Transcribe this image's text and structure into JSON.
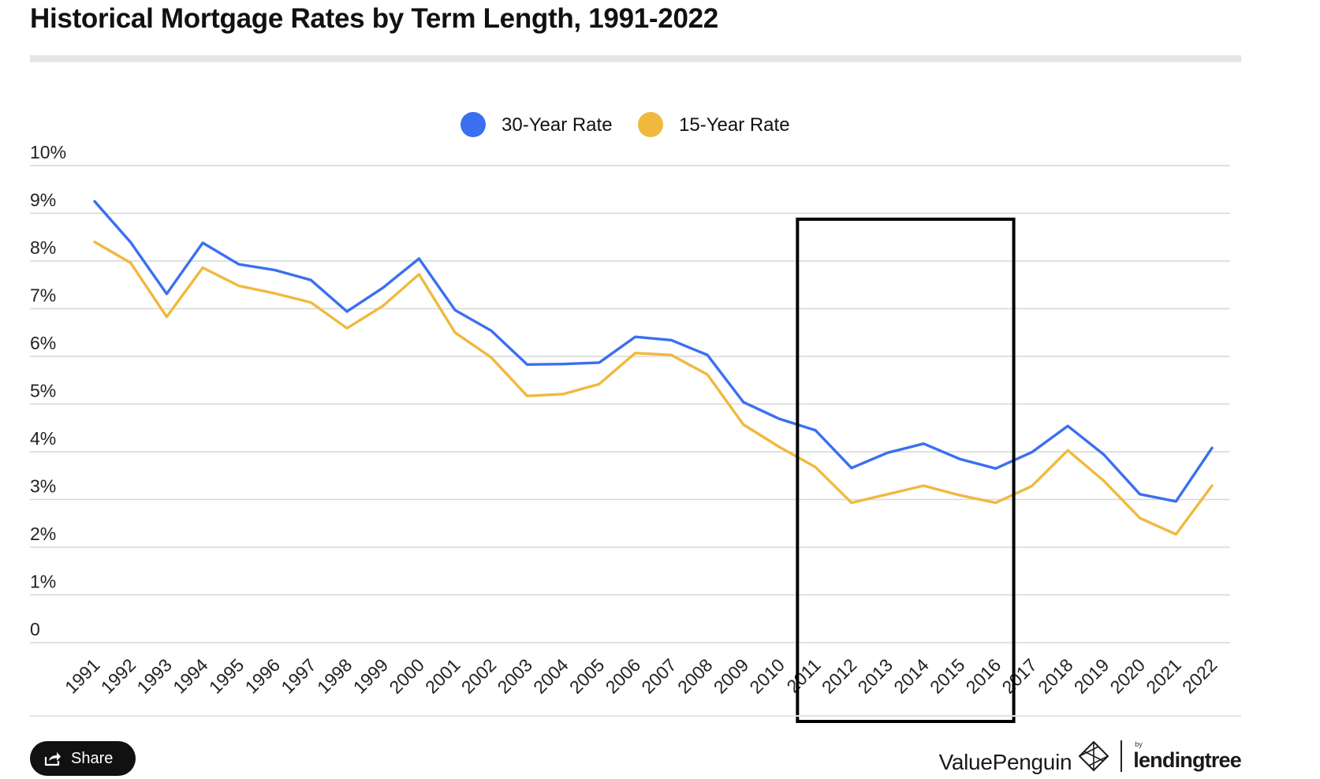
{
  "header": {
    "title": "Historical Mortgage Rates by Term Length, 1991-2022"
  },
  "footer": {
    "share_label": "Share",
    "share_icon": "share-icon",
    "brand_name": "ValuePenguin",
    "brand_mark_icon": "valuepenguin-logo-icon",
    "partner_prefix": "by",
    "partner_name": "lendingtree"
  },
  "chart_data": {
    "type": "line",
    "title": "Historical Mortgage Rates by Term Length, 1991-2022",
    "xlabel": "",
    "ylabel": "",
    "ylim": [
      0,
      10
    ],
    "grid": true,
    "legend_position": "top-center",
    "x": [
      "1991",
      "1992",
      "1993",
      "1994",
      "1995",
      "1996",
      "1997",
      "1998",
      "1999",
      "2000",
      "2001",
      "2002",
      "2003",
      "2004",
      "2005",
      "2006",
      "2007",
      "2008",
      "2009",
      "2010",
      "2011",
      "2012",
      "2013",
      "2014",
      "2015",
      "2016",
      "2017",
      "2018",
      "2019",
      "2020",
      "2021",
      "2022"
    ],
    "y_ticks": [
      {
        "value": 0,
        "label": "0"
      },
      {
        "value": 1,
        "label": "1%"
      },
      {
        "value": 2,
        "label": "2%"
      },
      {
        "value": 3,
        "label": "3%"
      },
      {
        "value": 4,
        "label": "4%"
      },
      {
        "value": 5,
        "label": "5%"
      },
      {
        "value": 6,
        "label": "6%"
      },
      {
        "value": 7,
        "label": "7%"
      },
      {
        "value": 8,
        "label": "8%"
      },
      {
        "value": 9,
        "label": "9%"
      },
      {
        "value": 10,
        "label": "10%"
      }
    ],
    "series": [
      {
        "name": "30-Year Rate",
        "color": "#3a6ff0",
        "values": [
          9.25,
          8.39,
          7.31,
          8.38,
          7.93,
          7.81,
          7.6,
          6.94,
          7.44,
          8.05,
          6.97,
          6.54,
          5.83,
          5.84,
          5.87,
          6.41,
          6.34,
          6.03,
          5.04,
          4.69,
          4.45,
          3.66,
          3.98,
          4.17,
          3.85,
          3.65,
          3.99,
          4.54,
          3.94,
          3.11,
          2.96,
          4.08
        ]
      },
      {
        "name": "15-Year Rate",
        "color": "#f0b93e",
        "values": [
          8.4,
          7.96,
          6.83,
          7.86,
          7.48,
          7.32,
          7.13,
          6.59,
          7.06,
          7.72,
          6.5,
          5.98,
          5.17,
          5.21,
          5.42,
          6.07,
          6.03,
          5.62,
          4.57,
          4.1,
          3.68,
          2.93,
          3.11,
          3.29,
          3.09,
          2.93,
          3.28,
          4.03,
          3.39,
          2.61,
          2.27,
          3.29
        ]
      }
    ],
    "highlight": {
      "from": "2011",
      "to": "2016",
      "color": "#000000"
    },
    "colors": {
      "grid": "#d7d7d7",
      "tick_text": "#222222"
    }
  }
}
